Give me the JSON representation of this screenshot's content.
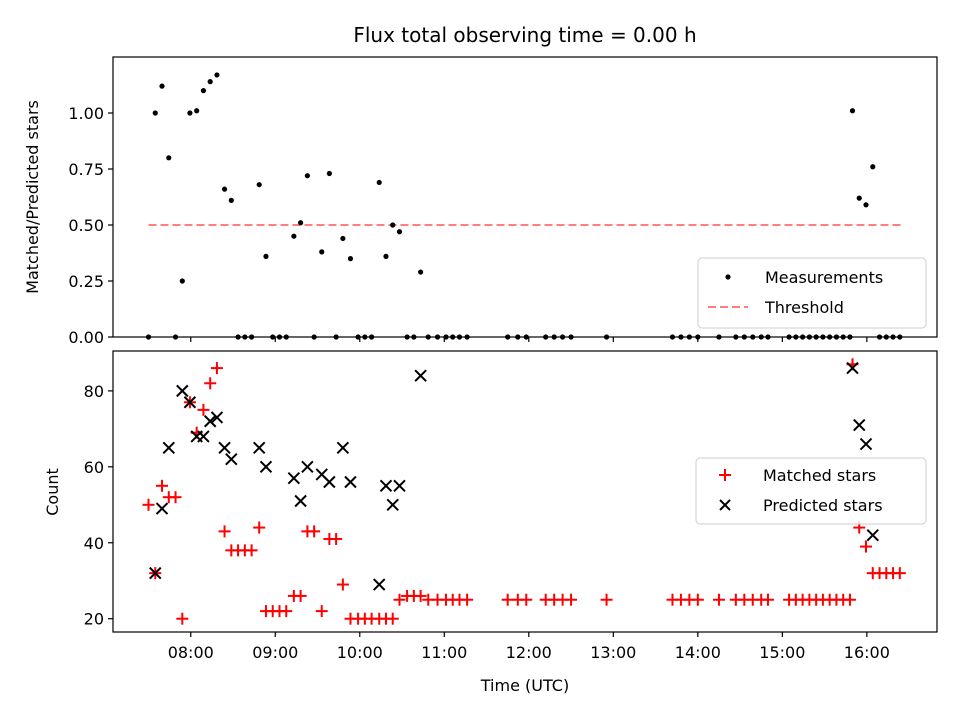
{
  "chart_data": [
    {
      "type": "scatter",
      "title": "Flux total observing time = 0.00 h",
      "xlabel": "",
      "ylabel": "Matched/Predicted stars",
      "xlim": [
        7.08,
        16.83
      ],
      "ylim": [
        0.0,
        1.25
      ],
      "yticks": [
        0.0,
        0.25,
        0.5,
        0.75,
        1.0
      ],
      "ytick_labels": [
        "0.00",
        "0.25",
        "0.50",
        "0.75",
        "1.00"
      ],
      "threshold": {
        "name": "Threshold",
        "value": 0.5,
        "x_range": [
          7.5,
          16.4
        ],
        "color": "#ff7f7f"
      },
      "series": [
        {
          "name": "Measurements",
          "color": "#000000",
          "marker": "dot",
          "points": [
            [
              7.5,
              0.0
            ],
            [
              7.58,
              1.0
            ],
            [
              7.66,
              1.12
            ],
            [
              7.74,
              0.8
            ],
            [
              7.82,
              0.0
            ],
            [
              7.9,
              0.25
            ],
            [
              7.99,
              1.0
            ],
            [
              8.07,
              1.01
            ],
            [
              8.15,
              1.1
            ],
            [
              8.23,
              1.14
            ],
            [
              8.31,
              1.17
            ],
            [
              8.4,
              0.66
            ],
            [
              8.48,
              0.61
            ],
            [
              8.56,
              0.0
            ],
            [
              8.64,
              0.0
            ],
            [
              8.72,
              0.0
            ],
            [
              8.81,
              0.68
            ],
            [
              8.89,
              0.36
            ],
            [
              8.97,
              0.0
            ],
            [
              9.05,
              0.0
            ],
            [
              9.13,
              0.0
            ],
            [
              9.22,
              0.45
            ],
            [
              9.3,
              0.51
            ],
            [
              9.38,
              0.72
            ],
            [
              9.46,
              0.0
            ],
            [
              9.55,
              0.38
            ],
            [
              9.64,
              0.73
            ],
            [
              9.72,
              0.0
            ],
            [
              9.8,
              0.44
            ],
            [
              9.89,
              0.35
            ],
            [
              9.98,
              0.0
            ],
            [
              10.06,
              0.0
            ],
            [
              10.14,
              0.0
            ],
            [
              10.23,
              0.69
            ],
            [
              10.31,
              0.36
            ],
            [
              10.39,
              0.5
            ],
            [
              10.47,
              0.47
            ],
            [
              10.56,
              0.0
            ],
            [
              10.64,
              0.0
            ],
            [
              10.72,
              0.29
            ],
            [
              10.81,
              0.0
            ],
            [
              10.92,
              0.0
            ],
            [
              11.02,
              0.0
            ],
            [
              11.1,
              0.0
            ],
            [
              11.18,
              0.0
            ],
            [
              11.27,
              0.0
            ],
            [
              11.75,
              0.0
            ],
            [
              11.87,
              0.0
            ],
            [
              11.97,
              0.0
            ],
            [
              12.2,
              0.0
            ],
            [
              12.3,
              0.0
            ],
            [
              12.4,
              0.0
            ],
            [
              12.5,
              0.0
            ],
            [
              12.92,
              0.0
            ],
            [
              13.7,
              0.0
            ],
            [
              13.8,
              0.0
            ],
            [
              13.9,
              0.0
            ],
            [
              14.0,
              0.0
            ],
            [
              14.25,
              0.0
            ],
            [
              14.45,
              0.0
            ],
            [
              14.55,
              0.0
            ],
            [
              14.65,
              0.0
            ],
            [
              14.75,
              0.0
            ],
            [
              14.83,
              0.0
            ],
            [
              15.08,
              0.0
            ],
            [
              15.16,
              0.0
            ],
            [
              15.24,
              0.0
            ],
            [
              15.32,
              0.0
            ],
            [
              15.4,
              0.0
            ],
            [
              15.48,
              0.0
            ],
            [
              15.56,
              0.0
            ],
            [
              15.64,
              0.0
            ],
            [
              15.72,
              0.0
            ],
            [
              15.8,
              0.0
            ],
            [
              15.83,
              1.01
            ],
            [
              15.91,
              0.62
            ],
            [
              15.99,
              0.59
            ],
            [
              16.07,
              0.76
            ],
            [
              16.15,
              0.0
            ],
            [
              16.23,
              0.0
            ],
            [
              16.31,
              0.0
            ],
            [
              16.39,
              0.0
            ]
          ]
        }
      ],
      "legend": {
        "location": "lower-right",
        "entries": [
          "Measurements",
          "Threshold"
        ]
      }
    },
    {
      "type": "scatter",
      "title": "",
      "xlabel": "Time (UTC)",
      "ylabel": "Count",
      "xlim": [
        7.08,
        16.83
      ],
      "ylim": [
        16.5,
        90.5
      ],
      "yticks": [
        20,
        40,
        60,
        80
      ],
      "ytick_labels": [
        "20",
        "40",
        "60",
        "80"
      ],
      "xticks": [
        8,
        9,
        10,
        11,
        12,
        13,
        14,
        15,
        16
      ],
      "xtick_labels": [
        "08:00",
        "09:00",
        "10:00",
        "11:00",
        "12:00",
        "13:00",
        "14:00",
        "15:00",
        "16:00"
      ],
      "series": [
        {
          "name": "Matched stars",
          "color": "#ff0000",
          "marker": "plus",
          "points": [
            [
              7.5,
              50
            ],
            [
              7.58,
              32
            ],
            [
              7.66,
              55
            ],
            [
              7.74,
              52
            ],
            [
              7.82,
              52
            ],
            [
              7.9,
              20
            ],
            [
              7.99,
              77
            ],
            [
              8.07,
              69
            ],
            [
              8.15,
              75
            ],
            [
              8.23,
              82
            ],
            [
              8.31,
              86
            ],
            [
              8.4,
              43
            ],
            [
              8.48,
              38
            ],
            [
              8.56,
              38
            ],
            [
              8.64,
              38
            ],
            [
              8.72,
              38
            ],
            [
              8.81,
              44
            ],
            [
              8.89,
              22
            ],
            [
              8.97,
              22
            ],
            [
              9.05,
              22
            ],
            [
              9.13,
              22
            ],
            [
              9.22,
              26
            ],
            [
              9.3,
              26
            ],
            [
              9.38,
              43
            ],
            [
              9.46,
              43
            ],
            [
              9.55,
              22
            ],
            [
              9.64,
              41
            ],
            [
              9.72,
              41
            ],
            [
              9.8,
              29
            ],
            [
              9.89,
              20
            ],
            [
              9.98,
              20
            ],
            [
              10.06,
              20
            ],
            [
              10.14,
              20
            ],
            [
              10.23,
              20
            ],
            [
              10.31,
              20
            ],
            [
              10.39,
              20
            ],
            [
              10.47,
              25
            ],
            [
              10.56,
              26
            ],
            [
              10.64,
              26
            ],
            [
              10.72,
              26
            ],
            [
              10.81,
              25
            ],
            [
              10.92,
              25
            ],
            [
              11.02,
              25
            ],
            [
              11.1,
              25
            ],
            [
              11.18,
              25
            ],
            [
              11.27,
              25
            ],
            [
              11.75,
              25
            ],
            [
              11.87,
              25
            ],
            [
              11.97,
              25
            ],
            [
              12.2,
              25
            ],
            [
              12.3,
              25
            ],
            [
              12.4,
              25
            ],
            [
              12.5,
              25
            ],
            [
              12.92,
              25
            ],
            [
              13.7,
              25
            ],
            [
              13.8,
              25
            ],
            [
              13.9,
              25
            ],
            [
              14.0,
              25
            ],
            [
              14.25,
              25
            ],
            [
              14.45,
              25
            ],
            [
              14.55,
              25
            ],
            [
              14.65,
              25
            ],
            [
              14.75,
              25
            ],
            [
              14.83,
              25
            ],
            [
              15.08,
              25
            ],
            [
              15.16,
              25
            ],
            [
              15.24,
              25
            ],
            [
              15.32,
              25
            ],
            [
              15.4,
              25
            ],
            [
              15.48,
              25
            ],
            [
              15.56,
              25
            ],
            [
              15.64,
              25
            ],
            [
              15.72,
              25
            ],
            [
              15.8,
              25
            ],
            [
              15.83,
              87
            ],
            [
              15.91,
              44
            ],
            [
              15.99,
              39
            ],
            [
              16.07,
              32
            ],
            [
              16.15,
              32
            ],
            [
              16.23,
              32
            ],
            [
              16.31,
              32
            ],
            [
              16.39,
              32
            ]
          ]
        },
        {
          "name": "Predicted stars",
          "color": "#000000",
          "marker": "x",
          "points": [
            [
              7.58,
              32
            ],
            [
              7.66,
              49
            ],
            [
              7.74,
              65
            ],
            [
              7.9,
              80
            ],
            [
              7.99,
              77
            ],
            [
              8.07,
              68
            ],
            [
              8.15,
              68
            ],
            [
              8.23,
              72
            ],
            [
              8.31,
              73
            ],
            [
              8.4,
              65
            ],
            [
              8.48,
              62
            ],
            [
              8.81,
              65
            ],
            [
              8.89,
              60
            ],
            [
              9.22,
              57
            ],
            [
              9.3,
              51
            ],
            [
              9.38,
              60
            ],
            [
              9.55,
              58
            ],
            [
              9.64,
              56
            ],
            [
              9.8,
              65
            ],
            [
              9.89,
              56
            ],
            [
              10.23,
              29
            ],
            [
              10.31,
              55
            ],
            [
              10.39,
              50
            ],
            [
              10.47,
              55
            ],
            [
              10.72,
              84
            ],
            [
              15.83,
              86
            ],
            [
              15.91,
              71
            ],
            [
              15.99,
              66
            ],
            [
              16.07,
              42
            ]
          ]
        }
      ],
      "legend": {
        "location": "center-right",
        "entries": [
          "Matched stars",
          "Predicted stars"
        ]
      }
    }
  ]
}
